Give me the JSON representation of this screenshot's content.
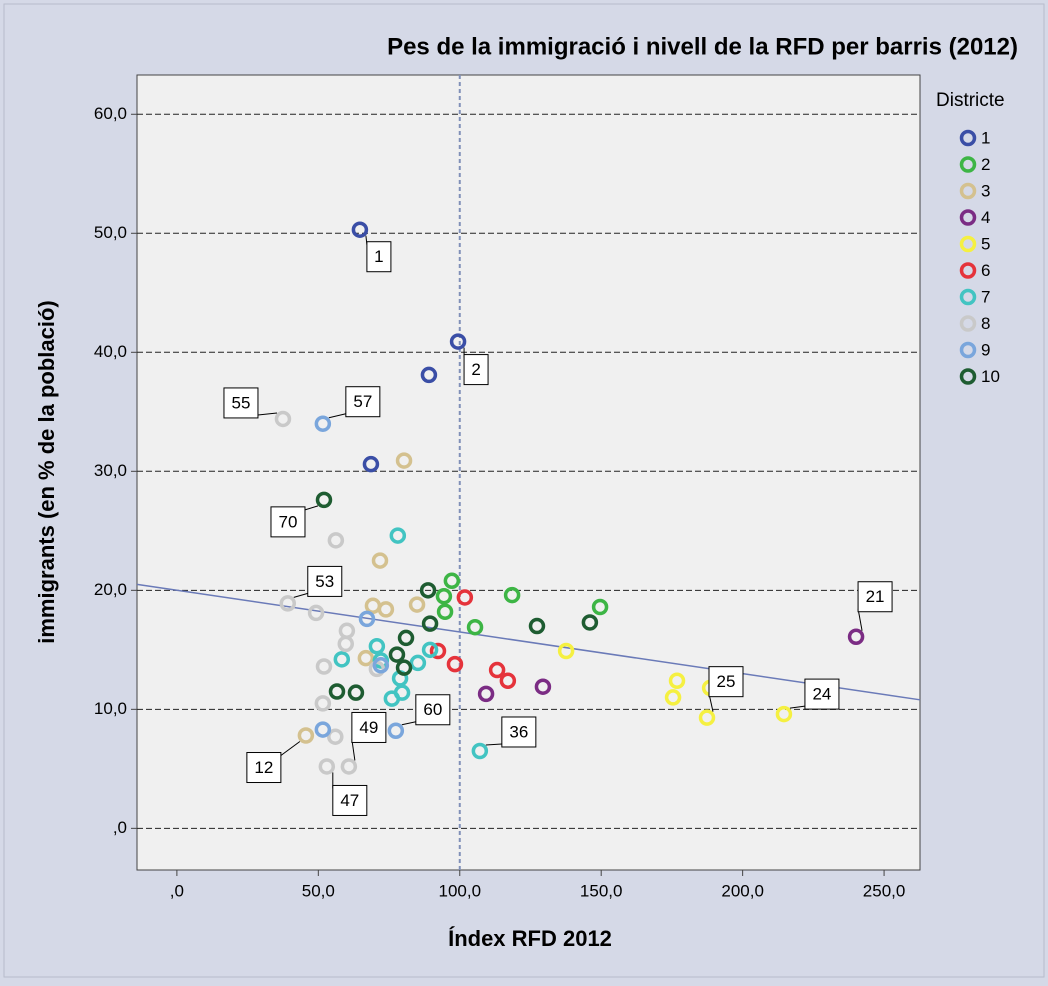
{
  "chart_data": {
    "type": "scatter",
    "title": "Pes de la immigració i nivell de la RFD per barris (2012)",
    "x_label": "Índex RFD 2012",
    "y_label": "immigrants (en % de la població)",
    "legend_title": "Districte",
    "legend": "right",
    "grid": true,
    "xlim": [
      -14.1,
      262.7
    ],
    "ylim": [
      -3.5,
      63.3
    ],
    "xticks": [
      {
        "value": 0,
        "label": ",0"
      },
      {
        "value": 50,
        "label": "50,0"
      },
      {
        "value": 100,
        "label": "100,0"
      },
      {
        "value": 150,
        "label": "150,0"
      },
      {
        "value": 200,
        "label": "200,0"
      },
      {
        "value": 250,
        "label": "250,0"
      }
    ],
    "yticks": [
      {
        "value": 0,
        "label": ",0"
      },
      {
        "value": 10,
        "label": "10,0"
      },
      {
        "value": 20,
        "label": "20,0"
      },
      {
        "value": 30,
        "label": "30,0"
      },
      {
        "value": 40,
        "label": "40,0"
      },
      {
        "value": 50,
        "label": "50,0"
      },
      {
        "value": 60,
        "label": "60,0"
      }
    ],
    "reference_x": 100,
    "fit_line": {
      "x": [
        -14.1,
        262.7
      ],
      "y": [
        20.5,
        10.8
      ],
      "color": "#6a7ab8"
    },
    "series": [
      {
        "name": "1",
        "color": "#3a4ea6",
        "x": [
          64.7,
          99.4,
          89.1,
          68.6
        ],
        "values": [
          50.3,
          40.9,
          38.1,
          30.6
        ]
      },
      {
        "name": "2",
        "color": "#3db545",
        "x": [
          97.2,
          94.4,
          94.8,
          105.4,
          118.5,
          149.6
        ],
        "values": [
          20.8,
          19.5,
          18.2,
          16.9,
          19.6,
          18.6
        ]
      },
      {
        "name": "3",
        "color": "#d4c18f",
        "x": [
          80.3,
          71.8,
          69.3,
          73.9,
          84.9,
          66.8,
          45.6
        ],
        "values": [
          30.9,
          22.5,
          18.7,
          18.4,
          18.8,
          14.3,
          7.8
        ]
      },
      {
        "name": "4",
        "color": "#7b2c84",
        "x": [
          240.1,
          109.3,
          129.4
        ],
        "values": [
          16.1,
          11.3,
          11.9
        ]
      },
      {
        "name": "5",
        "color": "#f5f041",
        "x": [
          137.6,
          176.8,
          175.4,
          188.5,
          187.4,
          214.6
        ],
        "values": [
          14.9,
          12.4,
          11.0,
          11.8,
          9.3,
          9.6
        ]
      },
      {
        "name": "6",
        "color": "#e5333b",
        "x": [
          101.8,
          92.3,
          98.3,
          113.2,
          117.0
        ],
        "values": [
          19.4,
          14.9,
          13.8,
          13.3,
          12.4
        ]
      },
      {
        "name": "7",
        "color": "#42c4c2",
        "x": [
          78.1,
          70.7,
          58.3,
          72.1,
          85.2,
          78.9,
          79.6,
          76.0,
          107.1,
          89.5
        ],
        "values": [
          24.6,
          15.3,
          14.2,
          14.1,
          13.9,
          12.6,
          11.4,
          10.9,
          6.5,
          15.0
        ]
      },
      {
        "name": "8",
        "color": "#c9c9c9",
        "x": [
          37.5,
          56.2,
          39.2,
          49.2,
          60.1,
          59.7,
          52.0,
          70.7,
          51.6,
          56.0,
          53.0,
          60.8
        ],
        "values": [
          34.4,
          24.2,
          18.9,
          18.1,
          16.6,
          15.5,
          13.6,
          13.4,
          10.5,
          7.7,
          5.2,
          5.2
        ]
      },
      {
        "name": "9",
        "color": "#7aa6dc",
        "x": [
          51.6,
          67.2,
          72.1,
          51.6,
          77.4
        ],
        "values": [
          34.0,
          17.6,
          13.7,
          8.3,
          8.2
        ]
      },
      {
        "name": "10",
        "color": "#1e5c31",
        "x": [
          52.0,
          88.8,
          89.5,
          81.0,
          77.8,
          80.3,
          56.6,
          63.3,
          127.3,
          146.0
        ],
        "values": [
          27.6,
          20.0,
          17.2,
          16.0,
          14.6,
          13.5,
          11.5,
          11.4,
          17.0,
          17.3
        ]
      }
    ],
    "annotations": [
      {
        "text": "1",
        "x": 64.7,
        "y": 50.3
      },
      {
        "text": "2",
        "x": 99.4,
        "y": 40.9
      },
      {
        "text": "55",
        "x": 37.5,
        "y": 34.4
      },
      {
        "text": "57",
        "x": 51.6,
        "y": 34.0
      },
      {
        "text": "70",
        "x": 52.0,
        "y": 27.6
      },
      {
        "text": "53",
        "x": 39.2,
        "y": 18.9
      },
      {
        "text": "21",
        "x": 240.1,
        "y": 16.1
      },
      {
        "text": "25",
        "x": 187.4,
        "y": 9.3
      },
      {
        "text": "24",
        "x": 214.6,
        "y": 9.6
      },
      {
        "text": "60",
        "x": 77.4,
        "y": 8.2
      },
      {
        "text": "49",
        "x": 60.8,
        "y": 5.2
      },
      {
        "text": "36",
        "x": 107.1,
        "y": 6.5
      },
      {
        "text": "12",
        "x": 45.6,
        "y": 7.8
      },
      {
        "text": "47",
        "x": 53.0,
        "y": 5.2
      }
    ]
  }
}
